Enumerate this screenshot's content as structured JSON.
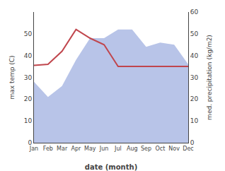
{
  "chart_data": {
    "type": "line",
    "categories": [
      "Jan",
      "Feb",
      "Mar",
      "Apr",
      "May",
      "Jun",
      "Jul",
      "Aug",
      "Sep",
      "Oct",
      "Nov",
      "Dec"
    ],
    "xlabel": "date (month)",
    "ylabel": "max temp (C)",
    "y2label": "med. precipitation (kg/m2)",
    "ylim": [
      0,
      60
    ],
    "yticks": [
      0,
      10,
      20,
      30,
      40,
      50
    ],
    "y2lim": [
      0,
      60
    ],
    "y2ticks": [
      0,
      10,
      20,
      30,
      40,
      50,
      60
    ],
    "grid": false,
    "series": [
      {
        "type": "area",
        "axis": "y2",
        "color": "#b8c4e8",
        "values": [
          28,
          21,
          26,
          38,
          48,
          48,
          52,
          52,
          44,
          46,
          45,
          36
        ]
      },
      {
        "type": "line",
        "color": "#c0464d",
        "values": [
          35.5,
          36.0,
          42.0,
          52.0,
          48.0,
          45.0,
          35.0,
          35.0,
          35.0,
          35.0,
          35.0,
          35.0
        ]
      }
    ]
  }
}
